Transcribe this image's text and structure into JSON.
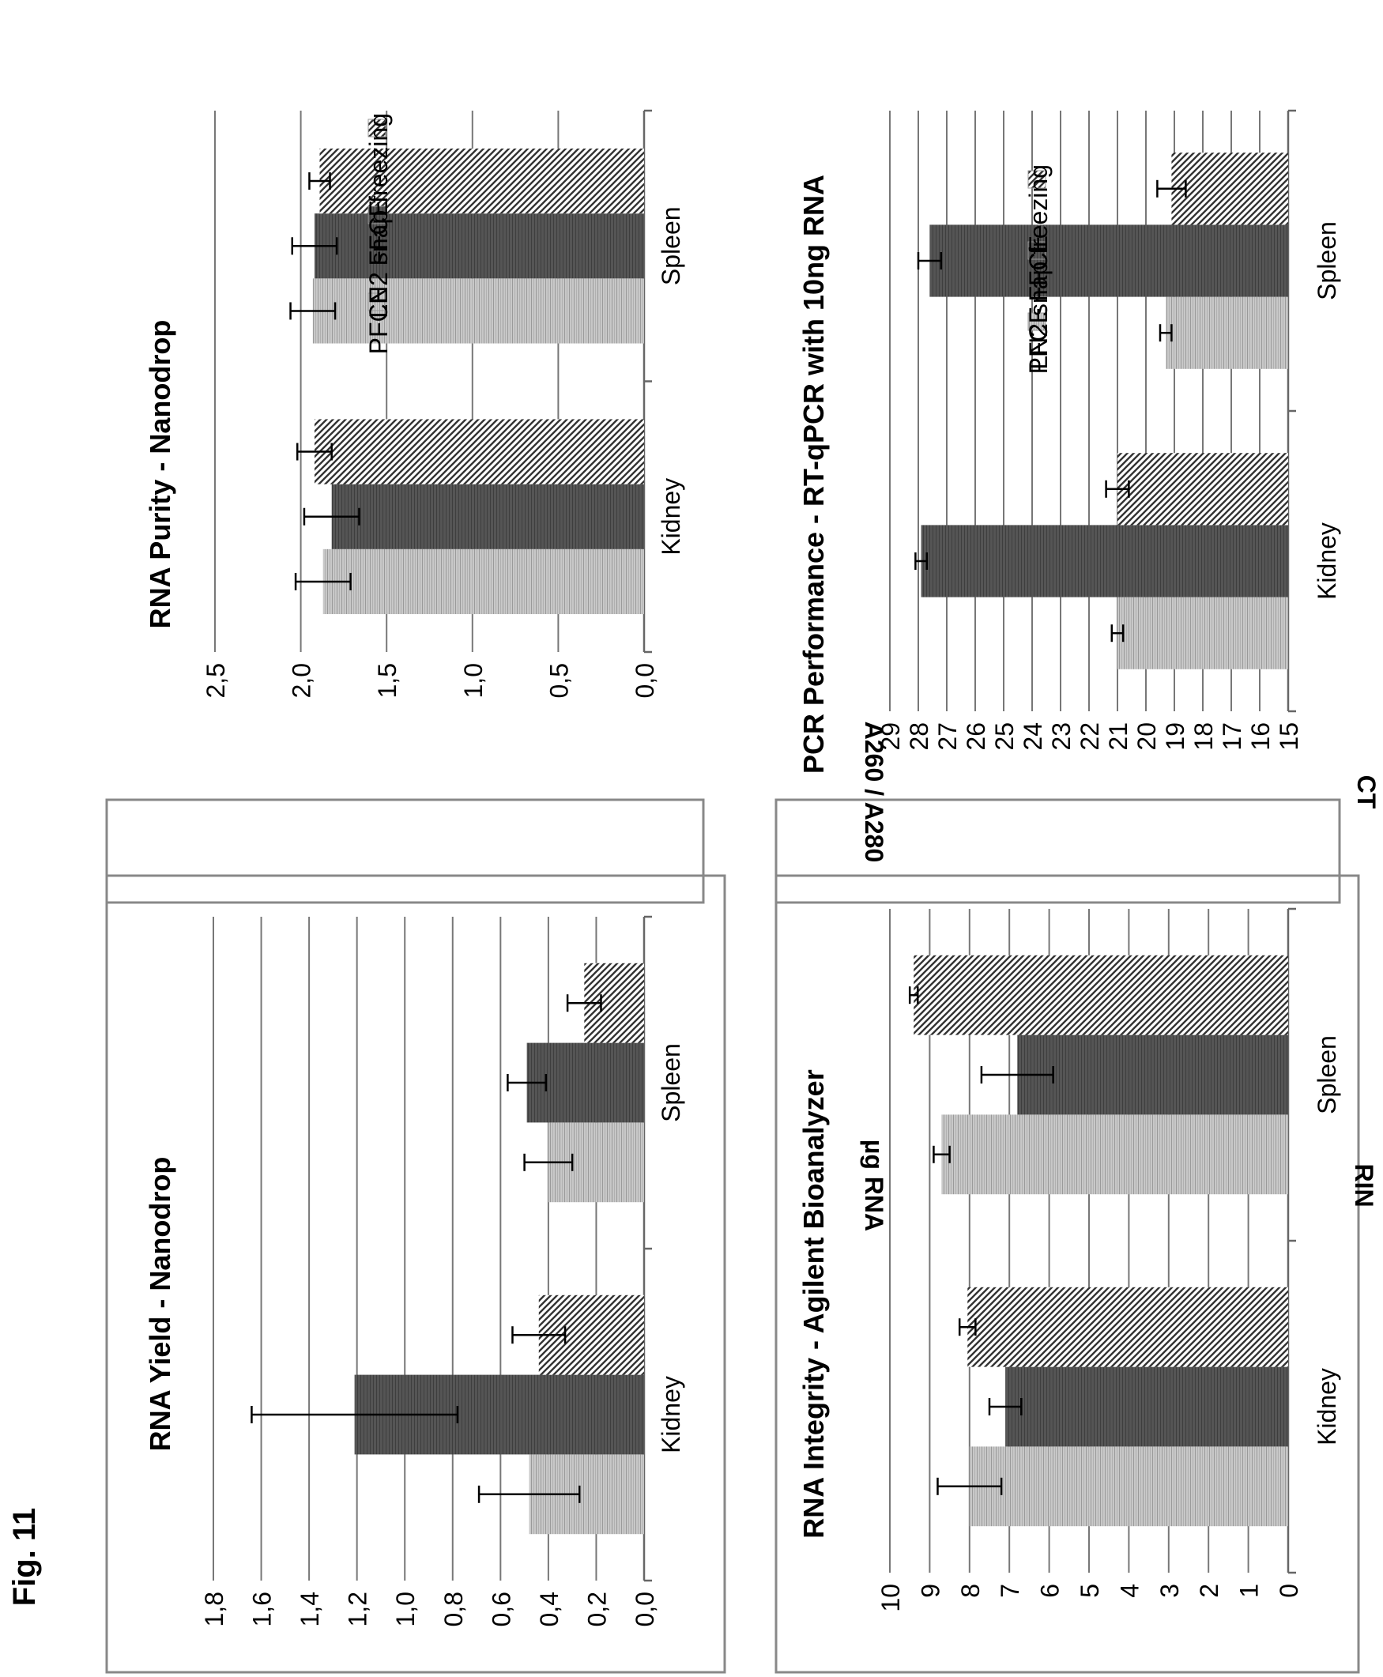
{
  "figure_label": "Fig. 11",
  "colors": {
    "pfce": "#c4c4c4",
    "ffce": "#555555",
    "ln2": "#7a7a7a",
    "grid": "#777777",
    "frame": "#888888"
  },
  "chart_data": [
    {
      "id": "yield",
      "type": "bar",
      "title": "RNA Yield - Nanodrop",
      "ylabel": "µg RNA",
      "categories": [
        "Kidney",
        "Spleen"
      ],
      "ylim": [
        0,
        1.8
      ],
      "ticks": [
        "0,0",
        "0,2",
        "0,4",
        "0,6",
        "0,8",
        "1,0",
        "1,2",
        "1,4",
        "1,6",
        "1,8"
      ],
      "tick_values": [
        0,
        0.2,
        0.4,
        0.6,
        0.8,
        1.0,
        1.2,
        1.4,
        1.6,
        1.8
      ],
      "grid": true,
      "series": [
        {
          "name": "PFCE",
          "values": [
            0.48,
            0.4
          ],
          "err": [
            0.21,
            0.1
          ]
        },
        {
          "name": "FFCE",
          "values": [
            1.21,
            0.49
          ],
          "err": [
            0.43,
            0.08
          ]
        },
        {
          "name": "LN2 snap freezing",
          "values": [
            0.44,
            0.25
          ],
          "err": [
            0.11,
            0.07
          ]
        }
      ],
      "legend": false
    },
    {
      "id": "purity",
      "type": "bar",
      "title": "RNA Purity - Nanodrop",
      "ylabel": "A260 / A280",
      "categories": [
        "Kidney",
        "Spleen"
      ],
      "ylim": [
        0,
        2.5
      ],
      "ticks": [
        "0,0",
        "0,5",
        "1,0",
        "1,5",
        "2,0",
        "2,5"
      ],
      "tick_values": [
        0,
        0.5,
        1.0,
        1.5,
        2.0,
        2.5
      ],
      "grid": true,
      "series": [
        {
          "name": "PFCE",
          "values": [
            1.87,
            1.93
          ],
          "err": [
            0.16,
            0.13
          ]
        },
        {
          "name": "FFCE",
          "values": [
            1.82,
            1.92
          ],
          "err": [
            0.16,
            0.13
          ]
        },
        {
          "name": "LN2 snap freezing",
          "values": [
            1.92,
            1.89
          ],
          "err": [
            0.1,
            0.06
          ]
        }
      ],
      "legend": "right"
    },
    {
      "id": "integrity",
      "type": "bar",
      "title": "RNA Integrity - Agilent Bioanalyzer",
      "ylabel": "RIN",
      "categories": [
        "Kidney",
        "Spleen"
      ],
      "ylim": [
        0,
        10
      ],
      "ticks": [
        "0",
        "1",
        "2",
        "3",
        "4",
        "5",
        "6",
        "7",
        "8",
        "9",
        "10"
      ],
      "tick_values": [
        0,
        1,
        2,
        3,
        4,
        5,
        6,
        7,
        8,
        9,
        10
      ],
      "grid": true,
      "series": [
        {
          "name": "PFCE",
          "values": [
            8.0,
            8.7
          ],
          "err": [
            0.8,
            0.2
          ]
        },
        {
          "name": "FFCE",
          "values": [
            7.1,
            6.8
          ],
          "err": [
            0.4,
            0.9
          ]
        },
        {
          "name": "LN2 snap freezing",
          "values": [
            8.05,
            9.4
          ],
          "err": [
            0.2,
            0.1
          ]
        }
      ],
      "legend": false
    },
    {
      "id": "pcr",
      "type": "bar",
      "title": "PCR Performance - RT-qPCR with 10ng RNA",
      "ylabel": "CT",
      "categories": [
        "Kidney",
        "Spleen"
      ],
      "ylim": [
        15,
        29
      ],
      "ticks": [
        "15",
        "16",
        "17",
        "18",
        "19",
        "20",
        "21",
        "22",
        "23",
        "24",
        "25",
        "26",
        "27",
        "28",
        "29"
      ],
      "tick_values": [
        15,
        16,
        17,
        18,
        19,
        20,
        21,
        22,
        23,
        24,
        25,
        26,
        27,
        28,
        29
      ],
      "grid": true,
      "series": [
        {
          "name": "PFCE",
          "values": [
            21.0,
            19.3
          ],
          "err": [
            0.2,
            0.2
          ]
        },
        {
          "name": "FFCE",
          "values": [
            27.9,
            27.6
          ],
          "err": [
            0.2,
            0.4
          ]
        },
        {
          "name": "LN2 snap freezing",
          "values": [
            21.0,
            19.1
          ],
          "err": [
            0.4,
            0.5
          ]
        }
      ],
      "legend": "right"
    }
  ]
}
